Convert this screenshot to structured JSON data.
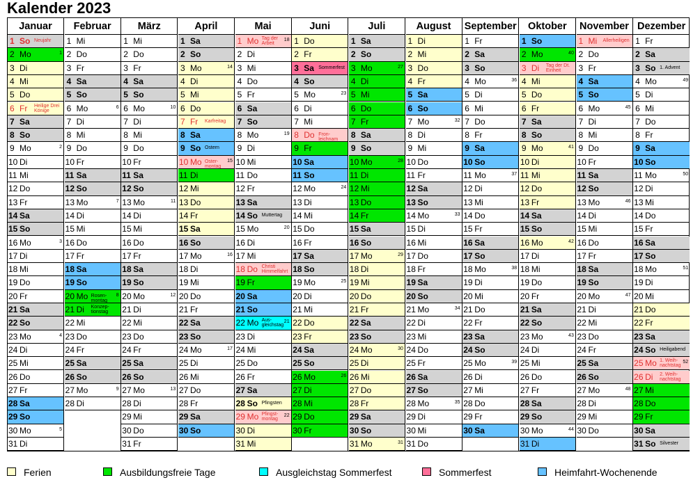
{
  "title": "Kalender 2023",
  "colors": {
    "weekend": "#d3d3d3",
    "ferien": "#ffffcc",
    "ausbildungsfrei": "#00e600",
    "heimfahrt": "#66c2ff",
    "ausgleichstag": "#00ffff",
    "sommerfest": "#ff6f99",
    "feiertag": "#ffcccc",
    "holiday_text": "#e03030"
  },
  "legend": [
    {
      "key": "ferien",
      "label": "Ferien"
    },
    {
      "key": "ausb",
      "label": "Ausbildungsfreie Tage"
    },
    {
      "key": "ausgl",
      "label": "Ausgleichstag Sommerfest"
    },
    {
      "key": "sommer",
      "label": "Sommerfest"
    },
    {
      "key": "heim",
      "label": "Heimfahrt-Wochenende"
    }
  ],
  "months": [
    {
      "name": "Januar",
      "days": 31,
      "start": 6,
      "hl": {
        "2": "ausb",
        "3": "ferien",
        "4": "ferien",
        "5": "ferien",
        "6": "ferien",
        "28": "heim",
        "29": "heim"
      },
      "holidays": [
        1,
        6
      ],
      "notes": {
        "1": "Neujahr",
        "6": "Heilige Drei Könige"
      },
      "kw": {
        "2": "1",
        "9": "2",
        "16": "3",
        "23": "4",
        "30": "5"
      }
    },
    {
      "name": "Februar",
      "days": 28,
      "start": 2,
      "hl": {
        "18": "heim",
        "19": "heim",
        "20": "ausb",
        "21": "ausb"
      },
      "holidays": [],
      "notes": {
        "20": "Rosen-montag",
        "21": "Konzep-tionstag"
      },
      "kw": {
        "6": "6",
        "13": "7",
        "20": "8",
        "27": "9"
      }
    },
    {
      "name": "März",
      "days": 31,
      "start": 2,
      "hl": {},
      "holidays": [],
      "notes": {},
      "kw": {
        "6": "10",
        "13": "11",
        "20": "12",
        "27": "13"
      }
    },
    {
      "name": "April",
      "days": 30,
      "start": 5,
      "hl": {
        "3": "ferien",
        "4": "ferien",
        "5": "ferien",
        "6": "ferien",
        "7": "ferien",
        "8": "heim",
        "9": "heim",
        "10": "feiertag",
        "11": "ausb",
        "12": "ferien",
        "13": "ferien",
        "14": "ferien",
        "15": "ferien",
        "30": "heim"
      },
      "holidays": [
        7,
        10
      ],
      "notes": {
        "7": "Karfreitag",
        "9": "Ostern",
        "10": "Oster-montag"
      },
      "kw": {
        "3": "14",
        "10": "15",
        "17": "16",
        "24": "17"
      }
    },
    {
      "name": "Mai",
      "days": 31,
      "start": 0,
      "hl": {
        "1": "feiertag",
        "18": "feiertag",
        "19": "ausb",
        "20": "heim",
        "21": "heim",
        "22": "ausgl",
        "28": "ferien",
        "29": "feiertag",
        "30": "ferien",
        "31": "ferien"
      },
      "holidays": [
        1,
        18,
        29
      ],
      "notes": {
        "1": "Tag der Arbeit",
        "14": "Muttertag",
        "18": "Christi Himmelfahrt",
        "22": "Aus-gleichstag",
        "28": "Pfingsten",
        "29": "Pfingst-montag"
      },
      "kw": {
        "1": "18",
        "8": "19",
        "15": "20",
        "22": "21",
        "29": "22"
      }
    },
    {
      "name": "Juni",
      "days": 30,
      "start": 3,
      "hl": {
        "1": "ferien",
        "2": "ferien",
        "3": "sommer",
        "8": "feiertag",
        "9": "ausb",
        "10": "heim",
        "11": "heim",
        "22": "ferien",
        "23": "ferien",
        "26": "ausb",
        "27": "ausb",
        "28": "ausb",
        "29": "ausb",
        "30": "ausb"
      },
      "holidays": [
        8
      ],
      "notes": {
        "3": "Sommerfest",
        "8": "Fron-leichnam"
      },
      "kw": {
        "5": "23",
        "12": "24",
        "19": "25",
        "26": "26"
      }
    },
    {
      "name": "Juli",
      "days": 31,
      "start": 5,
      "hl": {
        "3": "ausb",
        "4": "ausb",
        "5": "ausb",
        "6": "ausb",
        "7": "ausb",
        "10": "ausb",
        "11": "ausb",
        "12": "ausb",
        "13": "ausb",
        "14": "ausb",
        "17": "ferien",
        "18": "ferien",
        "19": "ferien",
        "20": "ferien",
        "21": "ferien",
        "24": "ferien",
        "25": "ferien",
        "26": "ferien",
        "27": "ferien",
        "28": "ferien",
        "31": "ferien"
      },
      "holidays": [],
      "notes": {},
      "kw": {
        "3": "27",
        "10": "28",
        "17": "29",
        "24": "30",
        "31": "31"
      }
    },
    {
      "name": "August",
      "days": 31,
      "start": 1,
      "hl": {
        "1": "ferien",
        "2": "ferien",
        "3": "ferien",
        "4": "ferien",
        "5": "heim",
        "6": "heim"
      },
      "holidays": [],
      "notes": {},
      "kw": {
        "7": "32",
        "14": "33",
        "21": "34",
        "28": "35"
      }
    },
    {
      "name": "September",
      "days": 30,
      "start": 4,
      "hl": {
        "9": "heim",
        "10": "heim",
        "30": "heim"
      },
      "holidays": [],
      "notes": {},
      "kw": {
        "4": "36",
        "11": "37",
        "18": "38",
        "25": "39"
      }
    },
    {
      "name": "Oktober",
      "days": 31,
      "start": 6,
      "hl": {
        "1": "heim",
        "2": "ausb",
        "3": "feiertag",
        "4": "ferien",
        "5": "ferien",
        "6": "ferien",
        "9": "ferien",
        "10": "ferien",
        "11": "ferien",
        "12": "ferien",
        "13": "ferien",
        "16": "ferien",
        "31": "heim"
      },
      "holidays": [
        3
      ],
      "notes": {
        "3": "Tag der Dt. Einheit"
      },
      "kw": {
        "2": "40",
        "9": "41",
        "16": "42",
        "23": "43",
        "30": "44"
      }
    },
    {
      "name": "November",
      "days": 30,
      "start": 2,
      "hl": {
        "1": "feiertag",
        "4": "heim",
        "5": "heim"
      },
      "holidays": [
        1
      ],
      "notes": {
        "1": "Allerheiligen"
      },
      "kw": {
        "6": "45",
        "13": "46",
        "20": "47",
        "27": "48"
      }
    },
    {
      "name": "Dezember",
      "days": 31,
      "start": 4,
      "hl": {
        "9": "heim",
        "10": "heim",
        "21": "ferien",
        "22": "ferien",
        "25": "feiertag",
        "26": "feiertag",
        "27": "ausb",
        "28": "ausb",
        "29": "ausb"
      },
      "holidays": [
        25,
        26
      ],
      "notes": {
        "3": "1. Advent",
        "24": "Heiligabend",
        "25": "1. Weih-nachtstag",
        "26": "2. Weih-nachtstag",
        "31": "Silvester"
      },
      "kw": {
        "4": "49",
        "11": "50",
        "18": "51",
        "25": "52"
      }
    }
  ],
  "weekdays": [
    "Mo",
    "Di",
    "Mi",
    "Do",
    "Fr",
    "Sa",
    "So"
  ]
}
